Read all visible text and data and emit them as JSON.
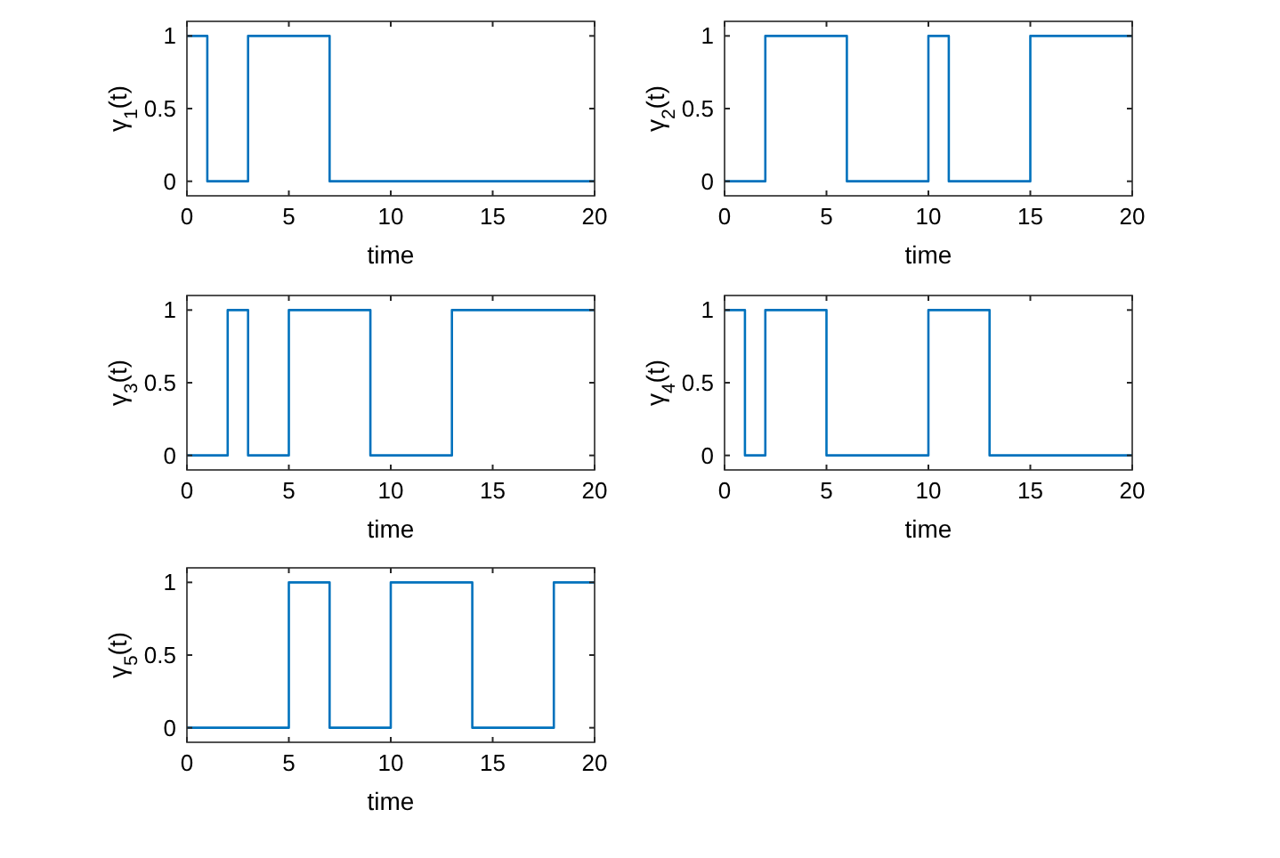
{
  "chart_data": [
    {
      "type": "step",
      "xlabel": "time",
      "ylabel": "γ$_{1}$(t)",
      "x": [
        0,
        1,
        3,
        7,
        20
      ],
      "series": [
        {
          "color": "#0072bd",
          "values": [
            1,
            0,
            1,
            0,
            0
          ]
        }
      ],
      "xlim": [
        0,
        20
      ],
      "xticks": [
        0,
        5,
        10,
        15,
        20
      ],
      "ylim": [
        -0.1,
        1.1
      ],
      "yticks": [
        0,
        0.5,
        1
      ]
    },
    {
      "type": "step",
      "xlabel": "time",
      "ylabel": "γ$_{2}$(t)",
      "x": [
        0,
        2,
        6,
        10,
        11,
        15,
        20
      ],
      "series": [
        {
          "color": "#0072bd",
          "values": [
            0,
            1,
            0,
            1,
            0,
            1,
            1
          ]
        }
      ],
      "xlim": [
        0,
        20
      ],
      "xticks": [
        0,
        5,
        10,
        15,
        20
      ],
      "ylim": [
        -0.1,
        1.1
      ],
      "yticks": [
        0,
        0.5,
        1
      ]
    },
    {
      "type": "step",
      "xlabel": "time",
      "ylabel": "γ$_{3}$(t)",
      "x": [
        0,
        2,
        3,
        5,
        9,
        13,
        20
      ],
      "series": [
        {
          "color": "#0072bd",
          "values": [
            0,
            1,
            0,
            1,
            0,
            1,
            1
          ]
        }
      ],
      "xlim": [
        0,
        20
      ],
      "xticks": [
        0,
        5,
        10,
        15,
        20
      ],
      "ylim": [
        -0.1,
        1.1
      ],
      "yticks": [
        0,
        0.5,
        1
      ]
    },
    {
      "type": "step",
      "xlabel": "time",
      "ylabel": "γ$_{4}$(t)",
      "x": [
        0,
        1,
        2,
        5,
        10,
        13,
        20
      ],
      "series": [
        {
          "color": "#0072bd",
          "values": [
            1,
            0,
            1,
            0,
            1,
            0,
            0
          ]
        }
      ],
      "xlim": [
        0,
        20
      ],
      "xticks": [
        0,
        5,
        10,
        15,
        20
      ],
      "ylim": [
        -0.1,
        1.1
      ],
      "yticks": [
        0,
        0.5,
        1
      ]
    },
    {
      "type": "step",
      "xlabel": "time",
      "ylabel": "γ$_{5}$(t)",
      "x": [
        0,
        5,
        7,
        10,
        14,
        18,
        20
      ],
      "series": [
        {
          "color": "#0072bd",
          "values": [
            0,
            1,
            0,
            1,
            0,
            1,
            1
          ]
        }
      ],
      "xlim": [
        0,
        20
      ],
      "xticks": [
        0,
        5,
        10,
        15,
        20
      ],
      "ylim": [
        -0.1,
        1.1
      ],
      "yticks": [
        0,
        0.5,
        1
      ]
    }
  ]
}
